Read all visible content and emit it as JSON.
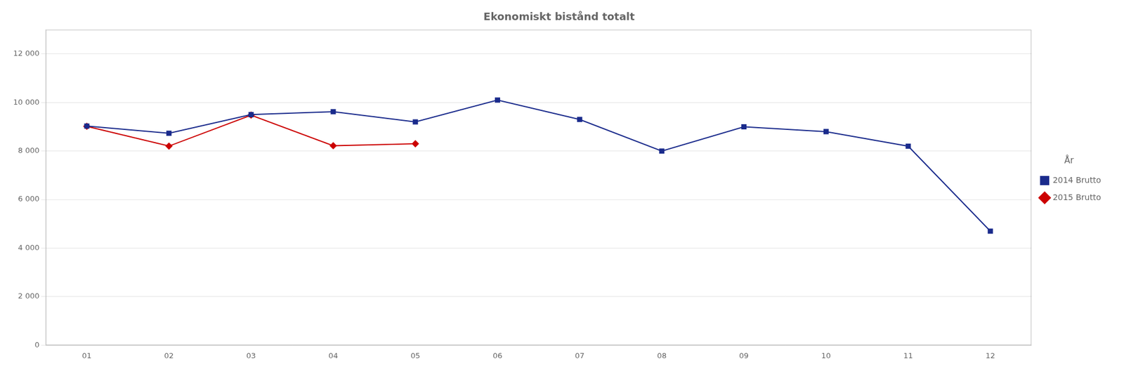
{
  "chart_data": {
    "type": "line",
    "title": "Ekonomiskt bistånd totalt",
    "categories": [
      "01",
      "02",
      "03",
      "04",
      "05",
      "06",
      "07",
      "08",
      "09",
      "10",
      "11",
      "12"
    ],
    "series": [
      {
        "name": "2014 Brutto",
        "color": "#1A2B8C",
        "marker": "square",
        "values": [
          9027,
          8731,
          9500,
          9620,
          9200,
          10100,
          9300,
          8000,
          9000,
          8800,
          8200,
          4700
        ]
      },
      {
        "name": "2015 Brutto",
        "color": "#CC0000",
        "marker": "diamond",
        "values": [
          9018,
          8204,
          9480,
          8220,
          8300,
          null,
          null,
          null,
          null,
          null,
          null,
          null
        ]
      }
    ],
    "ylim": [
      0,
      13000
    ],
    "yticks": [
      0,
      {
        "value": 2000,
        "label": "2 000"
      },
      {
        "value": 4000,
        "label": "4 000"
      },
      {
        "value": 6000,
        "label": "6 000"
      },
      {
        "value": 8000,
        "label": "8 000"
      },
      {
        "value": 10000,
        "label": "10 000"
      },
      {
        "value": 12000,
        "label": "12 000"
      }
    ],
    "grid": true,
    "legend": "right",
    "legend_title": "År"
  }
}
